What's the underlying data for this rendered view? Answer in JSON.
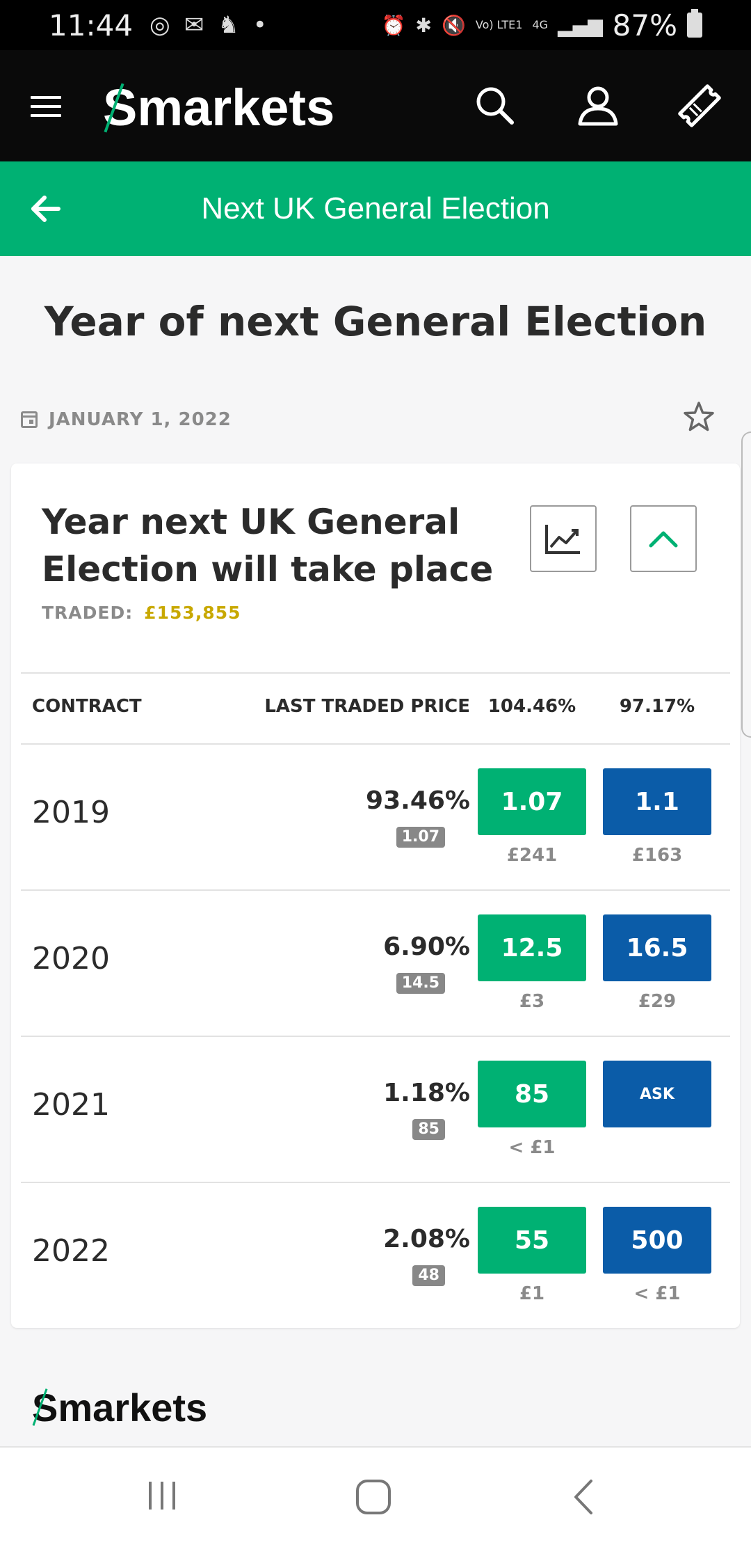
{
  "status_bar": {
    "time": "11:44",
    "signal_labels": [
      "Vo) LTE1",
      "4G"
    ],
    "battery": "87%"
  },
  "header": {
    "logo_first": "S",
    "logo_rest": "markets",
    "icons": [
      "menu-icon",
      "search-icon",
      "account-icon",
      "betslip-ticket-icon"
    ]
  },
  "event_bar": {
    "title": "Next UK General Election"
  },
  "page": {
    "title": "Year of next General Election",
    "date": "JANUARY 1, 2022"
  },
  "market": {
    "title": "Year next UK General Election will take place",
    "traded_label": "TRADED:",
    "traded_value": "£153,855",
    "columns": {
      "contract": "CONTRACT",
      "last_traded": "LAST TRADED PRICE",
      "back_total": "104.46%",
      "lay_total": "97.17%"
    },
    "rows": [
      {
        "name": "2019",
        "ltp_percent": "93.46%",
        "ltp_odds": "1.07",
        "back": "1.07",
        "back_liquidity": "£241",
        "lay": "1.1",
        "lay_liquidity": "£163"
      },
      {
        "name": "2020",
        "ltp_percent": "6.90%",
        "ltp_odds": "14.5",
        "back": "12.5",
        "back_liquidity": "£3",
        "lay": "16.5",
        "lay_liquidity": "£29"
      },
      {
        "name": "2021",
        "ltp_percent": "1.18%",
        "ltp_odds": "85",
        "back": "85",
        "back_liquidity": "< £1",
        "lay": "ASK",
        "lay_liquidity": ""
      },
      {
        "name": "2022",
        "ltp_percent": "2.08%",
        "ltp_odds": "48",
        "back": "55",
        "back_liquidity": "£1",
        "lay": "500",
        "lay_liquidity": "< £1"
      }
    ]
  },
  "footer": {
    "logo_first": "S",
    "logo_rest": "markets"
  },
  "colors": {
    "brand_green": "#00b173",
    "lay_blue": "#0b5ca8",
    "traded_gold": "#c8a800",
    "header_black": "#0a0a0a"
  }
}
